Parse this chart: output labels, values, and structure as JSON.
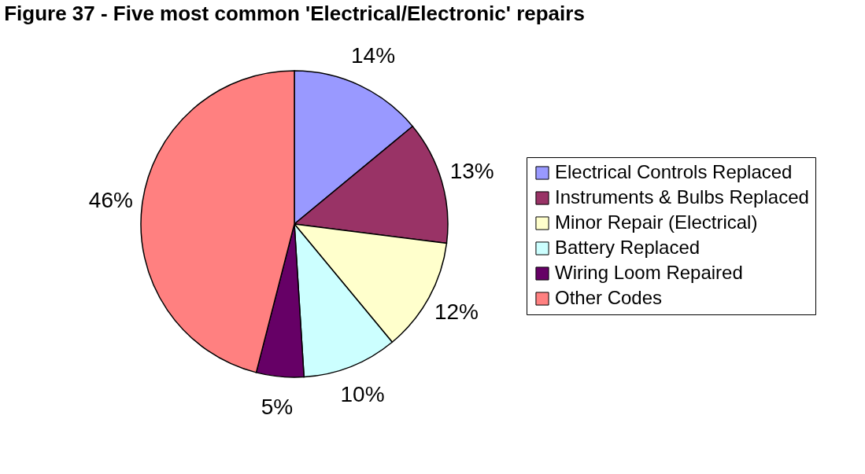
{
  "chart_data": {
    "type": "pie",
    "title": "Figure 37 - Five most common 'Electrical/Electronic' repairs",
    "categories": [
      "Electrical Controls Replaced",
      "Instruments & Bulbs Replaced",
      "Minor Repair (Electrical)",
      "Battery Replaced",
      "Wiring Loom Repaired",
      "Other Codes"
    ],
    "values": [
      14,
      13,
      12,
      10,
      5,
      46
    ],
    "colors": [
      "#9999ff",
      "#993366",
      "#ffffcc",
      "#ccffff",
      "#660066",
      "#ff8080"
    ],
    "value_labels": [
      "14%",
      "13%",
      "12%",
      "10%",
      "5%",
      "46%"
    ],
    "legend": "right"
  }
}
